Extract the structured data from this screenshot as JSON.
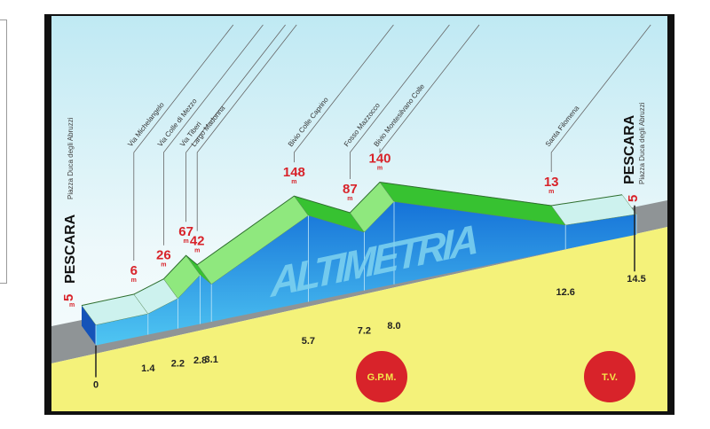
{
  "chart_data": {
    "type": "area",
    "title": "ALTIMETRIA",
    "x_unit": "km",
    "y_unit": "m",
    "points": [
      {
        "distance": 0,
        "distance_label": "0",
        "elevation": 5,
        "place": ""
      },
      {
        "distance": 1.4,
        "distance_label": "1.4",
        "elevation": 6,
        "place": "Via Michelangelo"
      },
      {
        "distance": 2.2,
        "distance_label": "2.2",
        "elevation": 26,
        "place": "Via Colle di Mezzo"
      },
      {
        "distance": 2.8,
        "distance_label": "2.8",
        "elevation": 67,
        "place": "Via Tiberi"
      },
      {
        "distance": 3.1,
        "distance_label": "3.1",
        "elevation": 42,
        "place": "Largo Madonna"
      },
      {
        "distance": 5.7,
        "distance_label": "5.7",
        "elevation": 148,
        "place": "Bivio Colle Caprino"
      },
      {
        "distance": 7.2,
        "distance_label": "7.2",
        "elevation": 87,
        "place": "Fosso Mazzocco"
      },
      {
        "distance": 8.0,
        "distance_label": "8.0",
        "elevation": 140,
        "place": "Bivio Montesilvano Colle"
      },
      {
        "distance": 12.6,
        "distance_label": "12.6",
        "elevation": 13,
        "place": "Santa Filomena"
      },
      {
        "distance": 14.5,
        "distance_label": "14.5",
        "elevation": 5,
        "place": ""
      }
    ],
    "elevation_unit_label": "m",
    "xlim": [
      0,
      14.5
    ],
    "grid": false
  },
  "start": {
    "town": "PESCARA",
    "location": "Piazza Duca degli Abruzzi",
    "elevation": "5",
    "unit": "m"
  },
  "finish": {
    "town": "PESCARA",
    "location": "Piazza Duca degli Abruzzi",
    "elevation": "5",
    "unit": "m"
  },
  "badges": [
    {
      "label": "G.P.M.",
      "distance": 8.0
    },
    {
      "label": "T.V.",
      "distance": 14.5
    }
  ],
  "colors": {
    "sky_top": "#bfe9f3",
    "sky_bottom": "#f2fafc",
    "ridge_green": "#3fcf3a",
    "ridge_light": "#c9f3e6",
    "face_blue": "#1e8fe0",
    "ground_yellow": "#f4f27a",
    "ground_gray": "#8f9496",
    "badge_red": "#d8232a",
    "elevation_red": "#d8232a"
  }
}
